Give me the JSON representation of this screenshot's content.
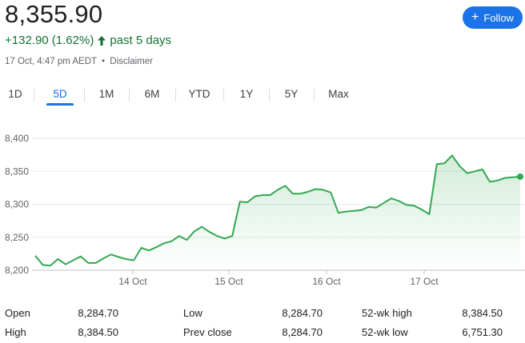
{
  "quote": {
    "price": "8,355.90",
    "change": "+132.90 (1.62%)",
    "period": "past 5 days",
    "timestamp": "17 Oct, 4:47 pm AEDT",
    "separator": "•",
    "disclaimer": "Disclaimer",
    "colors": {
      "positive": "#137333",
      "line": "#34a853",
      "accent": "#1a73e8"
    }
  },
  "follow": {
    "label": "Follow",
    "icon": "plus-icon"
  },
  "tabs": [
    "1D",
    "5D",
    "1M",
    "6M",
    "YTD",
    "1Y",
    "5Y",
    "Max"
  ],
  "active_tab": "5D",
  "chart_data": {
    "type": "line",
    "x_ticks": [
      "14 Oct",
      "15 Oct",
      "16 Oct",
      "17 Oct"
    ],
    "y_ticks": [
      "8,400",
      "8,350",
      "8,300",
      "8,250",
      "8,200"
    ],
    "ylim": [
      8200,
      8400
    ],
    "series": [
      {
        "values": [
          8222,
          8208,
          8207,
          8217,
          8209,
          8215,
          8221,
          8211,
          8211,
          8218,
          8224,
          8220,
          8217,
          8215,
          8234,
          8230,
          8235,
          8241,
          8244,
          8252,
          8246,
          8259,
          8266,
          8258,
          8252,
          8248,
          8252,
          8304,
          8303,
          8312,
          8314,
          8314,
          8322,
          8328,
          8316,
          8316,
          8319,
          8323,
          8322,
          8318,
          8287,
          8289,
          8290,
          8291,
          8296,
          8295,
          8302,
          8309,
          8305,
          8299,
          8298,
          8292,
          8285,
          8361,
          8362,
          8374,
          8358,
          8347,
          8350,
          8353,
          8334,
          8336,
          8340,
          8341,
          8342
        ]
      }
    ]
  },
  "stats": [
    {
      "label": "Open",
      "value": "8,284.70"
    },
    {
      "label": "Low",
      "value": "8,284.70"
    },
    {
      "label": "52-wk high",
      "value": "8,384.50"
    },
    {
      "label": "High",
      "value": "8,384.50"
    },
    {
      "label": "Prev close",
      "value": "8,284.70"
    },
    {
      "label": "52-wk low",
      "value": "6,751.30"
    }
  ]
}
